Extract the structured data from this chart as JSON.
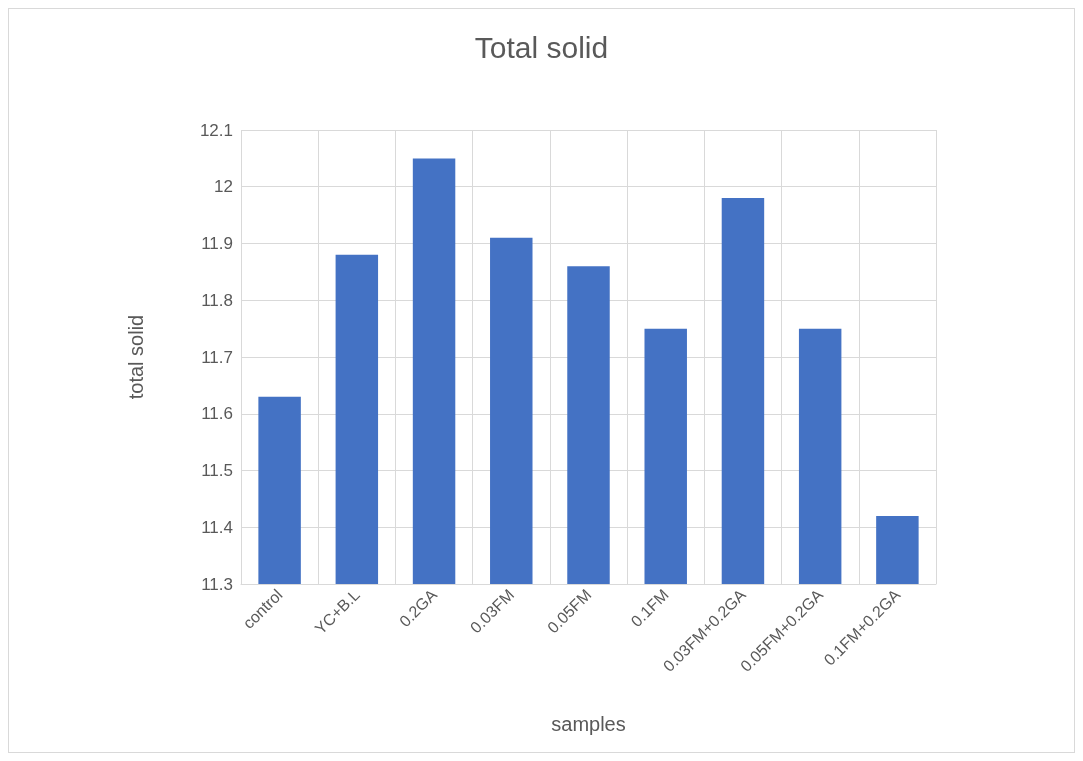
{
  "chart_data": {
    "type": "bar",
    "title": "Total solid",
    "xlabel": "samples",
    "ylabel": "total solid",
    "categories": [
      "control",
      "YC+B.L",
      "0.2GA",
      "0.03FM",
      "0.05FM",
      "0.1FM",
      "0.03FM+0.2GA",
      "0.05FM+0.2GA",
      "0.1FM+0.2GA"
    ],
    "values": [
      11.63,
      11.88,
      12.05,
      11.91,
      11.86,
      11.75,
      11.98,
      11.75,
      11.42
    ],
    "color": "#4472c4",
    "ylim": [
      11.3,
      12.1
    ],
    "yticks": [
      11.3,
      11.4,
      11.5,
      11.6,
      11.7,
      11.8,
      11.9,
      12,
      12.1
    ],
    "grid": true
  }
}
